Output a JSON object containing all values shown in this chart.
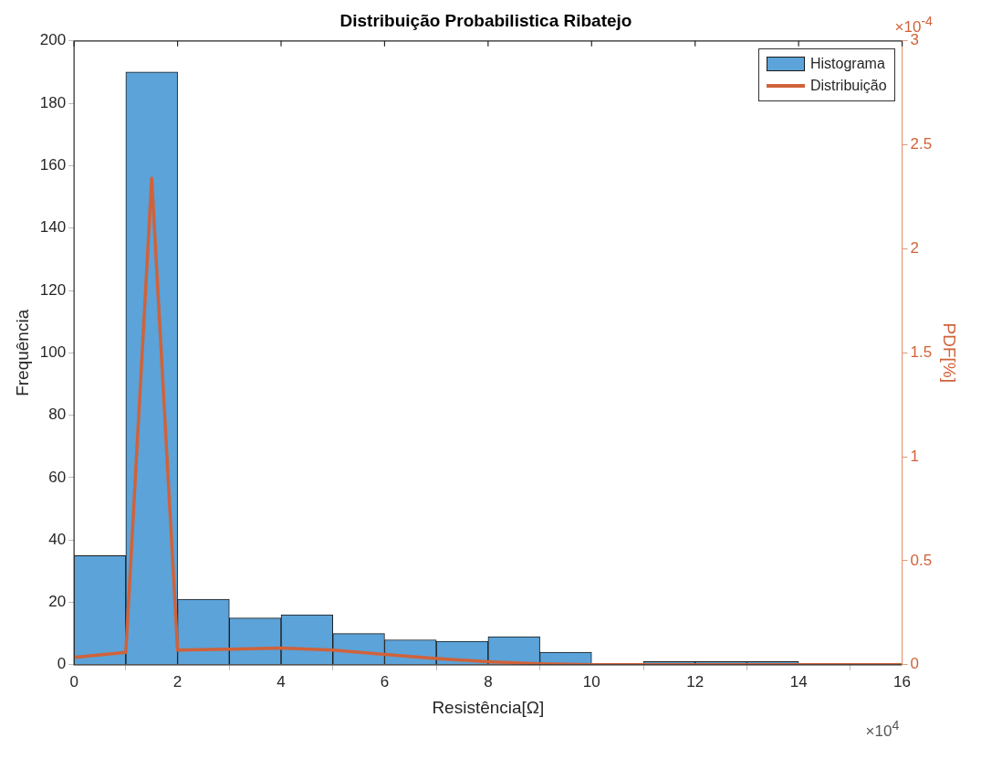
{
  "chart_data": {
    "type": "histogram",
    "title": "Distribuição Probabilistica Ribatejo",
    "xlabel": "Resistência[Ω]",
    "ylabel": "Frequência",
    "y2label": "PDF[%]",
    "annotations": [
      "×10$^{-4}$",
      "×10$^{4}$"
    ],
    "bins": [
      0,
      1,
      2,
      3,
      4,
      5,
      6,
      7,
      8,
      9,
      10,
      11,
      12,
      13,
      14,
      15,
      16
    ],
    "series": [
      {
        "name": "Histograma",
        "type": "histogram",
        "color": "#5ba3d9",
        "values": [
          35,
          190,
          21,
          15,
          16,
          10,
          8,
          7.5,
          9,
          4,
          0,
          1,
          1,
          1,
          0,
          0
        ]
      },
      {
        "name": "Distribuição",
        "type": "line",
        "axis": "y2",
        "color": "#d0623a",
        "x": [
          0,
          1,
          1.5,
          2,
          3,
          4,
          5,
          6,
          7,
          8,
          9,
          10,
          11,
          12,
          13,
          14,
          15,
          16
        ],
        "values": [
          0.035,
          0.06,
          2.34,
          0.07,
          0.075,
          0.08,
          0.07,
          0.05,
          0.03,
          0.015,
          0.005,
          0,
          0,
          0,
          0,
          0,
          0,
          0
        ]
      }
    ],
    "xlim": [
      0,
      16
    ],
    "xticks": [
      0,
      2,
      4,
      6,
      8,
      10,
      12,
      14,
      16
    ],
    "ylim": [
      0,
      200
    ],
    "yticks": [
      0,
      20,
      40,
      60,
      80,
      100,
      120,
      140,
      160,
      180,
      200
    ],
    "y2lim": [
      0,
      3
    ],
    "y2ticks": [
      0,
      0.5,
      1,
      1.5,
      2,
      2.5,
      3
    ],
    "grid": false,
    "legend": "top right"
  }
}
